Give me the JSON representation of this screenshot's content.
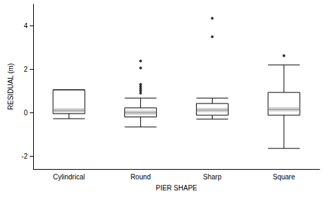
{
  "chart_data": {
    "type": "boxplot",
    "x_label": "PIER SHAPE",
    "y_label": "RESIDUAL (m)",
    "categories": [
      "Cylindrical",
      "Round",
      "Sharp",
      "Square"
    ],
    "values": [
      [
        -0.28,
        -0.05,
        0.1,
        1.05,
        1.05
      ],
      [
        -0.66,
        -0.2,
        0.0,
        0.22,
        0.67
      ],
      [
        -0.3,
        -0.12,
        0.12,
        0.42,
        0.67
      ],
      [
        -1.65,
        -0.12,
        0.15,
        0.93,
        2.2
      ]
    ],
    "outliers": [
      [],
      [
        2.38,
        2.06,
        1.3,
        1.2,
        1.1,
        1.0,
        0.9
      ],
      [
        4.35,
        3.5
      ],
      [
        2.62
      ]
    ],
    "color": "#000000",
    "ylim": [
      -2.6,
      5
    ],
    "yticks": [
      -2,
      0,
      2,
      4
    ],
    "grid": false
  }
}
